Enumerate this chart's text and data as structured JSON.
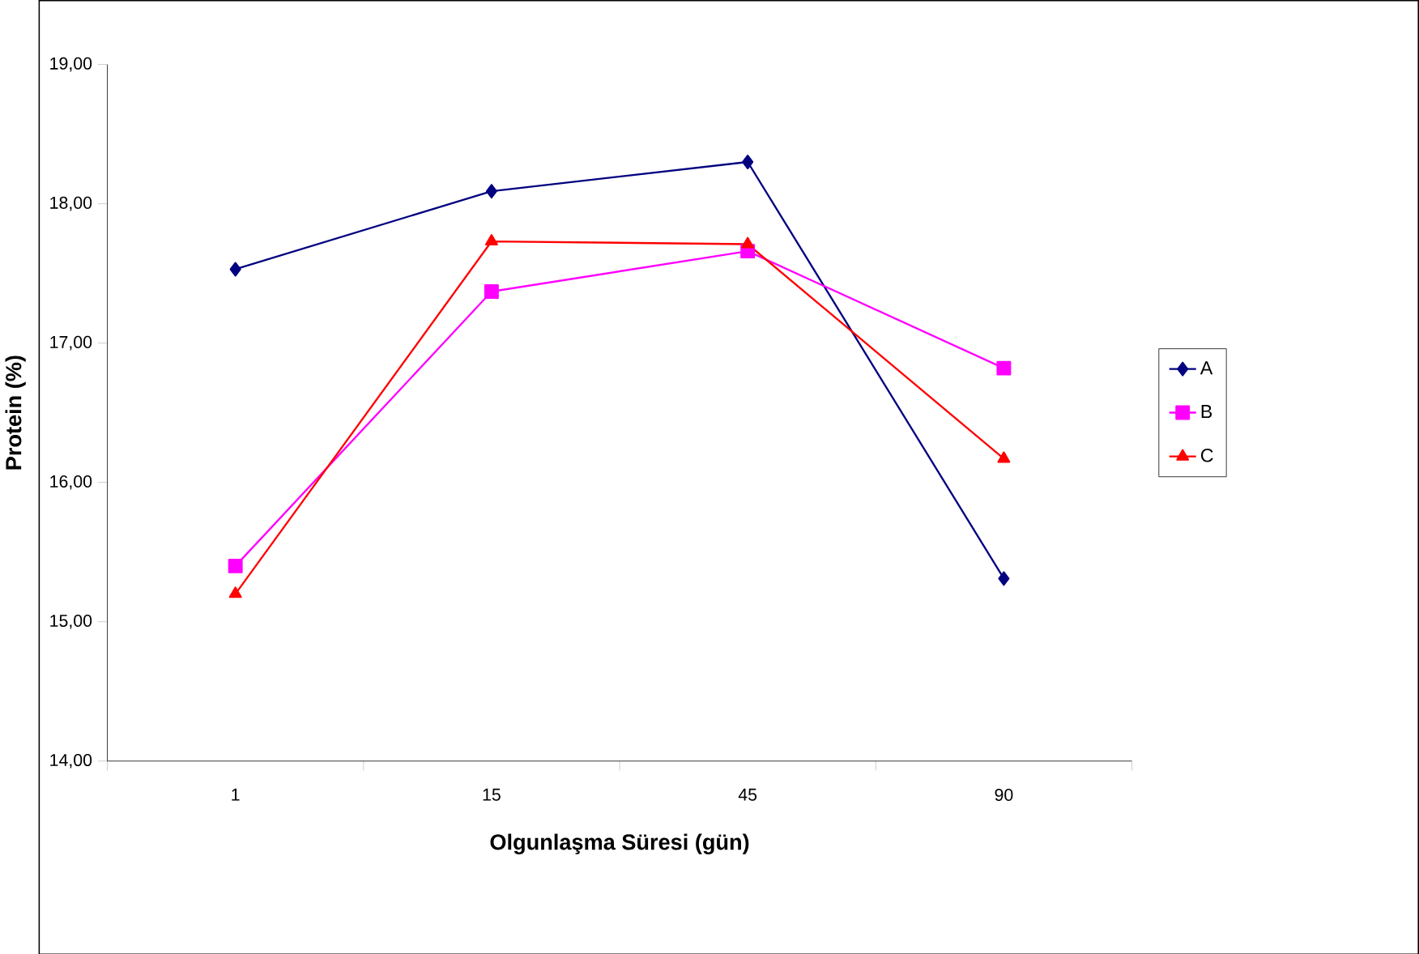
{
  "chart_data": {
    "type": "line",
    "xlabel": "Olgunlaşma Süresi (gün)",
    "ylabel": "Protein (%)",
    "categories": [
      "1",
      "15",
      "45",
      "90"
    ],
    "ylim": [
      14,
      19
    ],
    "yticks": [
      {
        "value": 14,
        "label": "14,00"
      },
      {
        "value": 15,
        "label": "15,00"
      },
      {
        "value": 16,
        "label": "16,00"
      },
      {
        "value": 17,
        "label": "17,00"
      },
      {
        "value": 18,
        "label": "18,00"
      },
      {
        "value": 19,
        "label": "19,00"
      }
    ],
    "grid": false,
    "legend": "right",
    "series": [
      {
        "name": "A",
        "color": "#000080",
        "marker": "diamond",
        "values": [
          17.53,
          18.09,
          18.3,
          15.31
        ]
      },
      {
        "name": "B",
        "color": "#ff00ff",
        "marker": "square",
        "values": [
          15.4,
          17.37,
          17.66,
          16.82
        ]
      },
      {
        "name": "C",
        "color": "#ff0000",
        "marker": "triangle",
        "values": [
          15.2,
          17.73,
          17.71,
          16.17
        ]
      }
    ]
  }
}
